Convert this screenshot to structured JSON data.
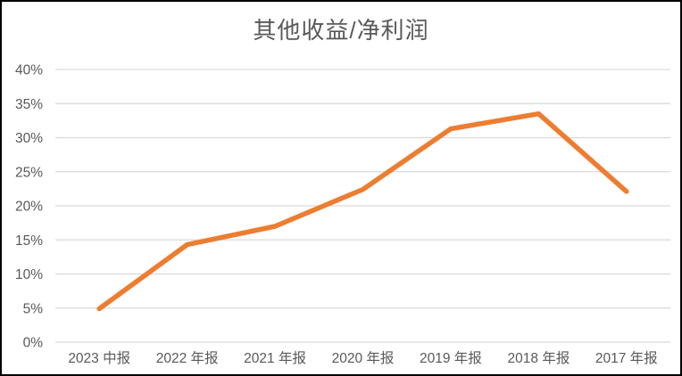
{
  "chart_data": {
    "type": "line",
    "title": "其他收益/净利润",
    "categories": [
      "2023 中报",
      "2022 年报",
      "2021 年报",
      "2020 年报",
      "2019 年报",
      "2018 年报",
      "2017 年报"
    ],
    "series": [
      {
        "name": "其他收益/净利润",
        "values": [
          4.9,
          14.3,
          17.0,
          22.4,
          31.3,
          33.5,
          22.1
        ]
      }
    ],
    "ylim": [
      0,
      40
    ],
    "ytick_step": 5,
    "ytick_labels": [
      "0%",
      "5%",
      "10%",
      "15%",
      "20%",
      "25%",
      "30%",
      "35%",
      "40%"
    ],
    "xlabel": "",
    "ylabel": "",
    "grid": "horizontal",
    "legend": "none",
    "colors": {
      "line": "#ED7D31",
      "title_text": "#595959",
      "tick_text": "#595959",
      "gridline": "#D9D9D9",
      "background": "#FFFFFF",
      "frame_border": "#000000"
    }
  }
}
